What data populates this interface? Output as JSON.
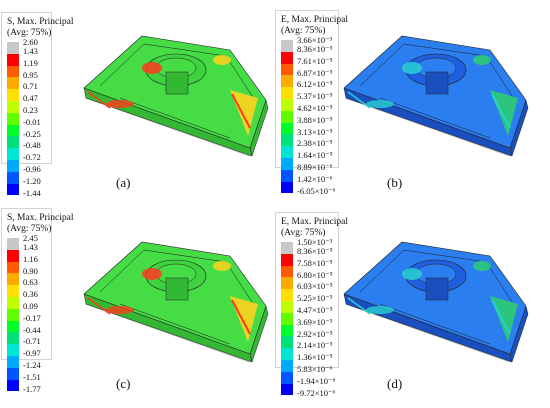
{
  "colors": [
    "#c8c8c8",
    "#ff0000",
    "#ff5a00",
    "#ffaa00",
    "#ffe000",
    "#bfff00",
    "#5fff00",
    "#00ff2a",
    "#00e07a",
    "#00e6d2",
    "#00aaff",
    "#0055ff",
    "#0000ff"
  ],
  "panels": [
    {
      "caption": "(a)",
      "title1": "S, Max. Principal",
      "title2": "(Avg: 75%)",
      "values": [
        "2.60",
        "1.43",
        "1.19",
        "0.95",
        "0.71",
        "0.47",
        "0.23",
        "-0.01",
        "-0.25",
        "-0.48",
        "-0.72",
        "-0.96",
        "-1.20",
        "-1.44"
      ],
      "scheme": "green"
    },
    {
      "caption": "(b)",
      "title1": "E, Max. Principal",
      "title2": "(Avg: 75%)",
      "values": [
        "3.66×10⁻³",
        "8.36×10⁻⁵",
        "7.61×10⁻⁵",
        "6.87×10⁻⁵",
        "6.12×10⁻⁵",
        "5.37×10⁻⁵",
        "4.62×10⁻⁵",
        "3.88×10⁻⁵",
        "3.13×10⁻⁵",
        "2.38×10⁻⁵",
        "1.64×10⁻⁵",
        "8.89×10⁻⁶",
        "1.42×10⁻⁶",
        "-6.05×10⁻⁶"
      ],
      "scheme": "blue"
    },
    {
      "caption": "(c)",
      "title1": "S, Max. Principal",
      "title2": "(Avg: 75%)",
      "values": [
        "2.45",
        "1.43",
        "1.16",
        "0.90",
        "0.63",
        "0.36",
        "0.09",
        "-0.17",
        "-0.44",
        "-0.71",
        "-0.97",
        "-1.24",
        "-1.51",
        "-1.77"
      ],
      "scheme": "green"
    },
    {
      "caption": "(d)",
      "title1": "E, Max. Principal",
      "title2": "(Avg: 75%)",
      "values": [
        "1.50×10⁻³",
        "8.36×10⁻⁵",
        "7.58×10⁻⁵",
        "6.80×10⁻⁵",
        "6.03×10⁻⁵",
        "5.25×10⁻⁵",
        "4.47×10⁻⁵",
        "3.69×10⁻⁵",
        "2.92×10⁻⁵",
        "2.14×10⁻⁵",
        "1.36×10⁻⁵",
        "5.83×10⁻⁶",
        "-1.94×10⁻⁶",
        "-9.72×10⁻⁶"
      ],
      "scheme": "blue"
    }
  ]
}
